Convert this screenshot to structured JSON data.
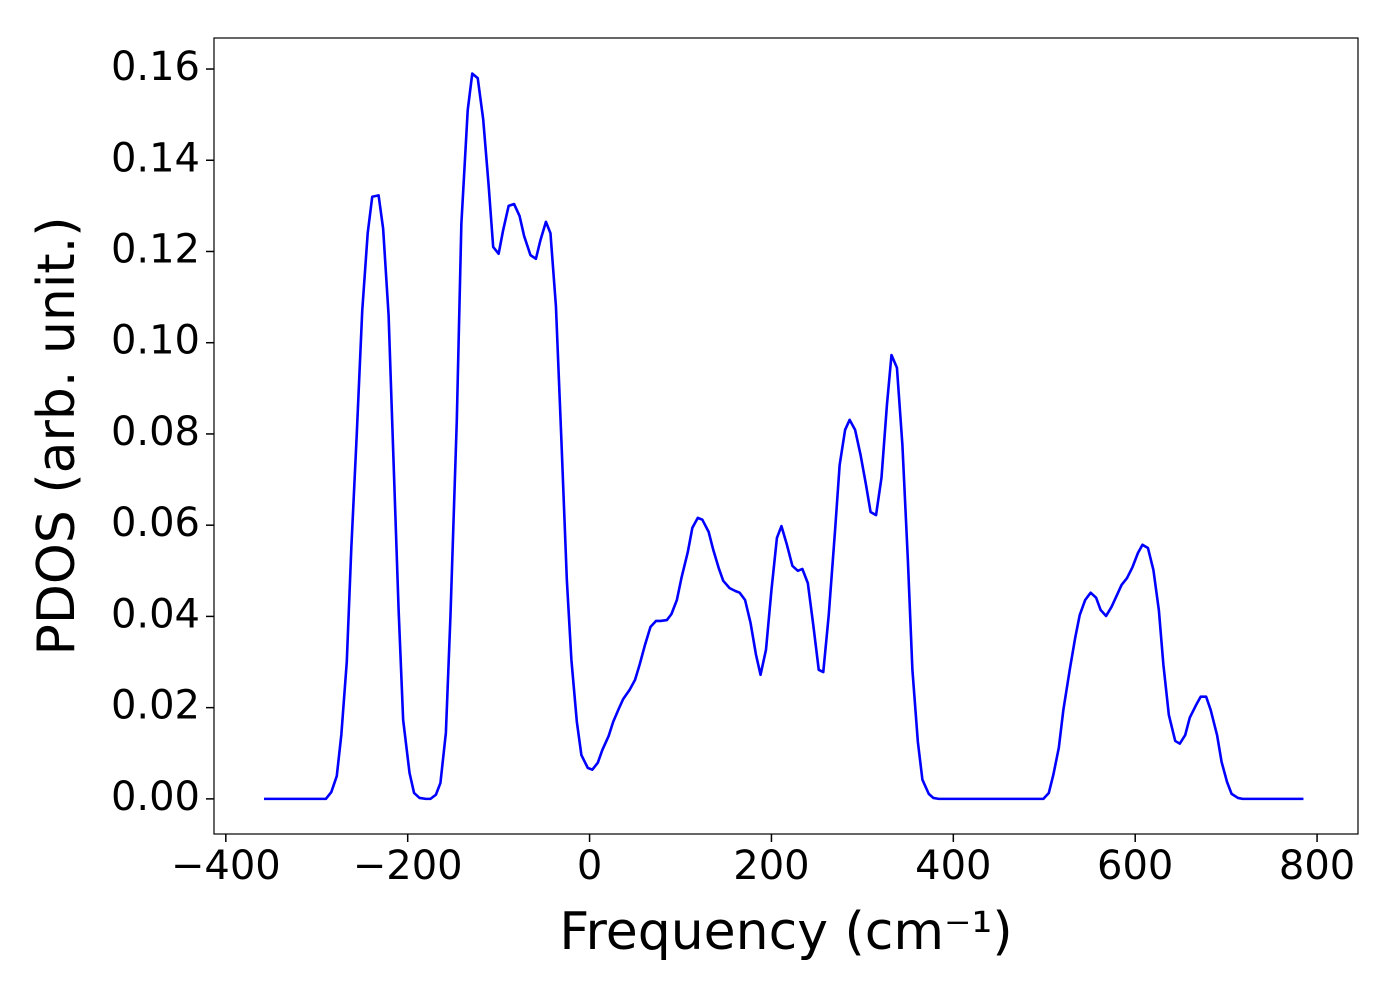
{
  "chart_data": {
    "type": "line",
    "ylabel": "PDOS (arb. unit.)",
    "xlabel": "Frequency (cm⁻¹)",
    "color": "#0000ff",
    "xlim": [
      -413,
      845
    ],
    "ylim": [
      -0.0077,
      0.1668
    ],
    "xticks": [
      {
        "value": -400,
        "label": "−400"
      },
      {
        "value": -200,
        "label": "−200"
      },
      0,
      200,
      400,
      600,
      800
    ],
    "yticks": [
      {
        "value": 0,
        "label": "0.00"
      },
      {
        "value": 0.02,
        "label": "0.02"
      },
      {
        "value": 0.04,
        "label": "0.04"
      },
      {
        "value": 0.06,
        "label": "0.06"
      },
      {
        "value": 0.08,
        "label": "0.08"
      },
      {
        "value": 0.1,
        "label": "0.10"
      },
      {
        "value": 0.12,
        "label": "0.12"
      },
      {
        "value": 0.14,
        "label": "0.14"
      },
      {
        "value": 0.16,
        "label": "0.16"
      }
    ],
    "x": [
      -358,
      -290,
      -284,
      -278,
      -273,
      -267,
      -262,
      -256,
      -250,
      -244,
      -239,
      -232,
      -227,
      -221,
      -216,
      -210,
      -205,
      -198,
      -193,
      -187,
      -180,
      -175,
      -169,
      -164,
      -158,
      -153,
      -146,
      -141,
      -134,
      -129,
      -123,
      -117,
      -111,
      -106,
      -100,
      -95,
      -89,
      -83,
      -77,
      -72,
      -65,
      -59,
      -54,
      -48,
      -43,
      -37,
      -31,
      -25,
      -20,
      -14,
      -9,
      -2,
      3,
      9,
      14,
      21,
      26,
      32,
      37,
      44,
      50,
      55,
      61,
      67,
      73,
      78,
      85,
      90,
      96,
      101,
      108,
      113,
      119,
      124,
      131,
      136,
      142,
      147,
      154,
      160,
      165,
      171,
      177,
      183,
      188,
      194,
      200,
      206,
      211,
      217,
      223,
      229,
      234,
      240,
      246,
      252,
      257,
      263,
      270,
      275,
      281,
      286,
      292,
      298,
      304,
      309,
      315,
      321,
      327,
      332,
      338,
      344,
      350,
      355,
      361,
      366,
      373,
      378,
      384,
      499,
      505,
      510,
      516,
      521,
      528,
      534,
      539,
      545,
      551,
      557,
      562,
      568,
      574,
      580,
      585,
      591,
      597,
      603,
      608,
      614,
      620,
      626,
      631,
      637,
      644,
      649,
      655,
      660,
      667,
      672,
      678,
      683,
      690,
      695,
      701,
      706,
      713,
      718,
      785
    ],
    "values": [
      0,
      0,
      0.0015,
      0.005,
      0.014,
      0.03,
      0.055,
      0.08,
      0.107,
      0.124,
      0.132,
      0.1323,
      0.125,
      0.106,
      0.0765,
      0.0415,
      0.0173,
      0.0057,
      0.0013,
      0.0002,
      0,
      0,
      0.0009,
      0.0035,
      0.0145,
      0.04,
      0.083,
      0.126,
      0.151,
      0.159,
      0.158,
      0.149,
      0.1345,
      0.121,
      0.1195,
      0.1247,
      0.13,
      0.1304,
      0.1278,
      0.1234,
      0.1192,
      0.1184,
      0.1225,
      0.1265,
      0.124,
      0.108,
      0.0787,
      0.048,
      0.0305,
      0.0169,
      0.0096,
      0.0068,
      0.0064,
      0.0079,
      0.0107,
      0.0138,
      0.0169,
      0.0197,
      0.0219,
      0.0239,
      0.0261,
      0.0294,
      0.0338,
      0.0377,
      0.039,
      0.039,
      0.0392,
      0.0405,
      0.0436,
      0.0484,
      0.0541,
      0.0594,
      0.0616,
      0.0612,
      0.0585,
      0.0546,
      0.0506,
      0.0478,
      0.0462,
      0.0456,
      0.0452,
      0.0436,
      0.0386,
      0.0316,
      0.0272,
      0.0327,
      0.0458,
      0.0572,
      0.0598,
      0.0557,
      0.0511,
      0.05,
      0.0504,
      0.0473,
      0.0381,
      0.0283,
      0.0278,
      0.0403,
      0.059,
      0.0732,
      0.0809,
      0.0831,
      0.0809,
      0.0754,
      0.0688,
      0.0629,
      0.0622,
      0.0704,
      0.0864,
      0.0973,
      0.0945,
      0.0776,
      0.0524,
      0.0283,
      0.0125,
      0.0042,
      0.0011,
      0.0002,
      0,
      0,
      0.0013,
      0.0053,
      0.0112,
      0.0195,
      0.0283,
      0.0353,
      0.0403,
      0.0436,
      0.0452,
      0.0441,
      0.0414,
      0.0401,
      0.0421,
      0.0447,
      0.0469,
      0.0484,
      0.0508,
      0.0539,
      0.0557,
      0.055,
      0.0502,
      0.0414,
      0.0294,
      0.0184,
      0.0127,
      0.0121,
      0.014,
      0.0178,
      0.0206,
      0.0224,
      0.0224,
      0.0195,
      0.014,
      0.0081,
      0.0037,
      0.0011,
      0.0002,
      0,
      0
    ]
  }
}
